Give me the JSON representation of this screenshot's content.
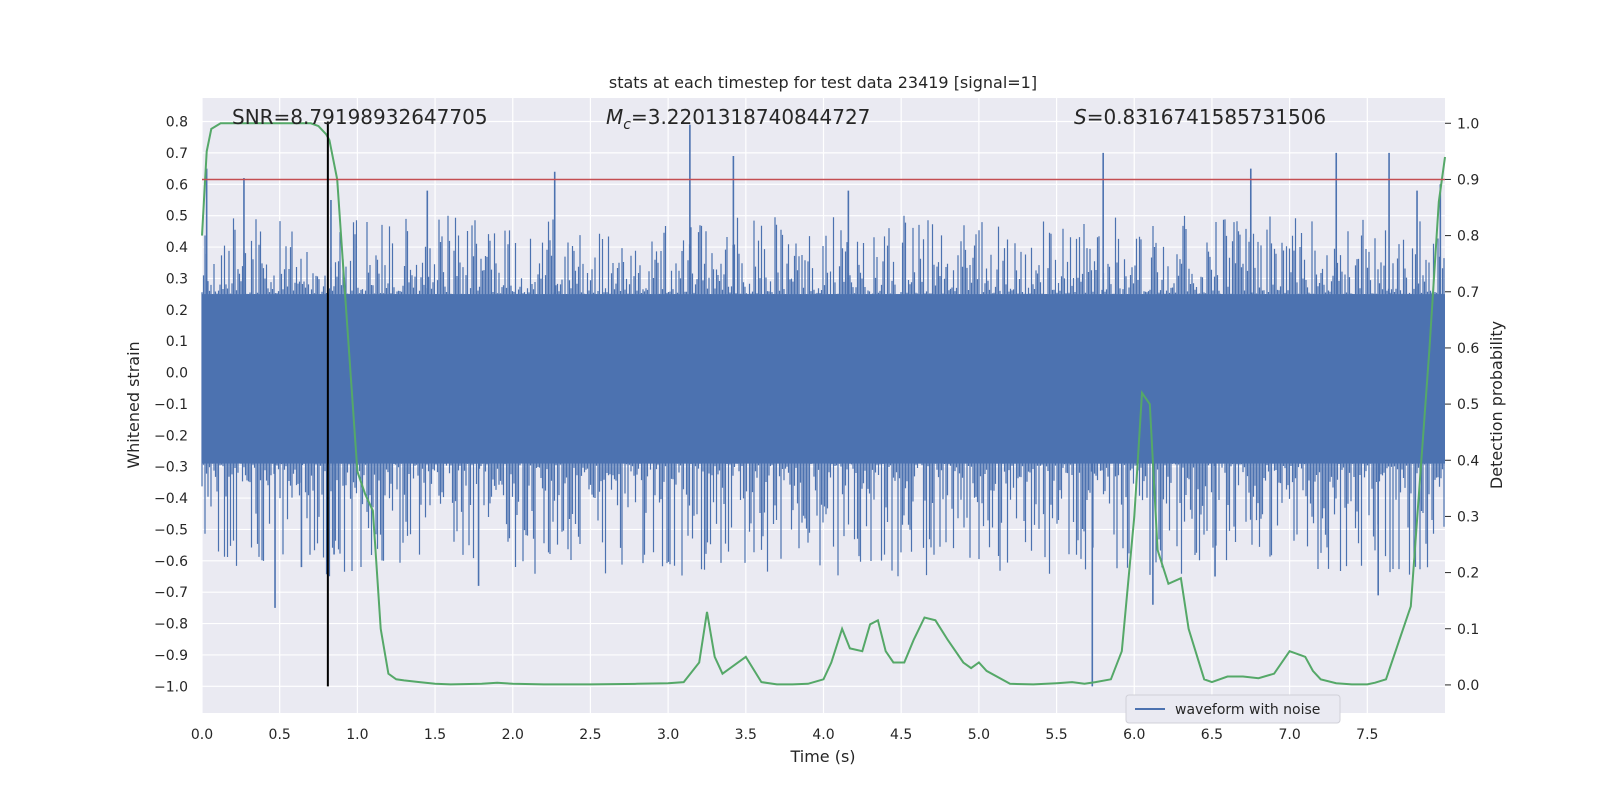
{
  "chart_data": {
    "type": "line",
    "title": "stats at each timestep for test data 23419 [signal=1]",
    "xlabel": "Time (s)",
    "ylabel": "Whitened strain",
    "y2label": "Detection probability",
    "xlim": [
      0.0,
      8.0
    ],
    "ylim": [
      -1.085,
      0.875
    ],
    "y2lim": [
      -0.05,
      1.045
    ],
    "xticks": [
      "0.0",
      "0.5",
      "1.0",
      "1.5",
      "2.0",
      "2.5",
      "3.0",
      "3.5",
      "4.0",
      "4.5",
      "5.0",
      "5.5",
      "6.0",
      "6.5",
      "7.0",
      "7.5"
    ],
    "yticks": [
      "0.8",
      "0.7",
      "0.6",
      "0.5",
      "0.4",
      "0.3",
      "0.2",
      "0.1",
      "0.0",
      "−0.1",
      "−0.2",
      "−0.3",
      "−0.4",
      "−0.5",
      "−0.6",
      "−0.7",
      "−0.8",
      "−0.9",
      "−1.0"
    ],
    "y2ticks": [
      "1.0",
      "0.9",
      "0.8",
      "0.7",
      "0.6",
      "0.5",
      "0.4",
      "0.3",
      "0.2",
      "0.1",
      "0.0"
    ],
    "grid": true,
    "legend_position": "lower-right",
    "annotations": {
      "snr": "SNR=8.79198932647705",
      "mc_symbol": "M",
      "mc_sub": "c",
      "mc_value": "=3.2201318740844727",
      "s_symbol": "S",
      "s_value": "=0.8316741585731506"
    },
    "threshold_line": {
      "y2": 0.9,
      "color": "#c44e52"
    },
    "marker_line": {
      "x": 0.81,
      "y_from": -1.0,
      "y_to": 0.8,
      "color": "#000000"
    },
    "series": [
      {
        "name": "waveform with noise",
        "color": "#4c72b0",
        "axis": "left",
        "description_only": false,
        "envelope": {
          "core_upper": 0.25,
          "core_lower": -0.29,
          "typical_peak": 0.45
        },
        "spikes": [
          [
            0.03,
            0.65
          ],
          [
            0.27,
            0.62
          ],
          [
            0.47,
            -0.75
          ],
          [
            0.64,
            -0.62
          ],
          [
            0.83,
            0.55
          ],
          [
            0.85,
            -0.58
          ],
          [
            1.45,
            0.58
          ],
          [
            1.78,
            -0.68
          ],
          [
            2.27,
            0.64
          ],
          [
            3.14,
            0.79
          ],
          [
            3.42,
            0.69
          ],
          [
            4.16,
            0.58
          ],
          [
            5.73,
            -1.0
          ],
          [
            5.8,
            0.7
          ],
          [
            6.12,
            -0.74
          ],
          [
            6.52,
            -0.65
          ],
          [
            6.75,
            0.65
          ],
          [
            7.3,
            0.7
          ],
          [
            7.57,
            -0.71
          ],
          [
            7.64,
            0.7
          ],
          [
            7.82,
            0.58
          ],
          [
            7.97,
            0.6
          ]
        ]
      },
      {
        "name": "",
        "color": "#55a868",
        "axis": "right",
        "x": [
          0.0,
          0.03,
          0.06,
          0.12,
          0.2,
          0.3,
          0.4,
          0.5,
          0.6,
          0.7,
          0.75,
          0.8,
          0.82,
          0.87,
          0.92,
          1.0,
          1.05,
          1.1,
          1.15,
          1.2,
          1.25,
          1.3,
          1.4,
          1.5,
          1.6,
          1.8,
          1.9,
          2.0,
          2.2,
          2.5,
          2.8,
          3.0,
          3.1,
          3.2,
          3.25,
          3.3,
          3.35,
          3.4,
          3.5,
          3.6,
          3.7,
          3.8,
          3.9,
          4.0,
          4.05,
          4.12,
          4.17,
          4.25,
          4.3,
          4.35,
          4.4,
          4.45,
          4.52,
          4.58,
          4.65,
          4.72,
          4.8,
          4.9,
          4.95,
          5.0,
          5.05,
          5.2,
          5.35,
          5.5,
          5.6,
          5.68,
          5.75,
          5.85,
          5.92,
          6.0,
          6.05,
          6.1,
          6.15,
          6.22,
          6.3,
          6.35,
          6.45,
          6.5,
          6.6,
          6.7,
          6.8,
          6.9,
          7.0,
          7.1,
          7.15,
          7.2,
          7.3,
          7.4,
          7.5,
          7.55,
          7.62,
          7.78,
          7.9,
          7.96,
          8.0
        ],
        "y": [
          0.8,
          0.95,
          0.99,
          1.0,
          1.0,
          1.0,
          1.0,
          1.0,
          1.0,
          1.0,
          0.995,
          0.98,
          0.97,
          0.9,
          0.7,
          0.38,
          0.34,
          0.31,
          0.1,
          0.02,
          0.01,
          0.008,
          0.005,
          0.002,
          0.001,
          0.002,
          0.004,
          0.002,
          0.001,
          0.001,
          0.002,
          0.003,
          0.005,
          0.04,
          0.13,
          0.05,
          0.02,
          0.03,
          0.05,
          0.005,
          0.001,
          0.001,
          0.002,
          0.01,
          0.04,
          0.1,
          0.065,
          0.06,
          0.108,
          0.115,
          0.06,
          0.04,
          0.04,
          0.08,
          0.12,
          0.115,
          0.08,
          0.04,
          0.03,
          0.04,
          0.025,
          0.002,
          0.001,
          0.003,
          0.005,
          0.002,
          0.005,
          0.01,
          0.06,
          0.3,
          0.52,
          0.5,
          0.24,
          0.18,
          0.19,
          0.1,
          0.01,
          0.005,
          0.015,
          0.015,
          0.012,
          0.02,
          0.06,
          0.05,
          0.025,
          0.01,
          0.003,
          0.001,
          0.001,
          0.004,
          0.01,
          0.14,
          0.6,
          0.86,
          0.94
        ]
      }
    ]
  }
}
